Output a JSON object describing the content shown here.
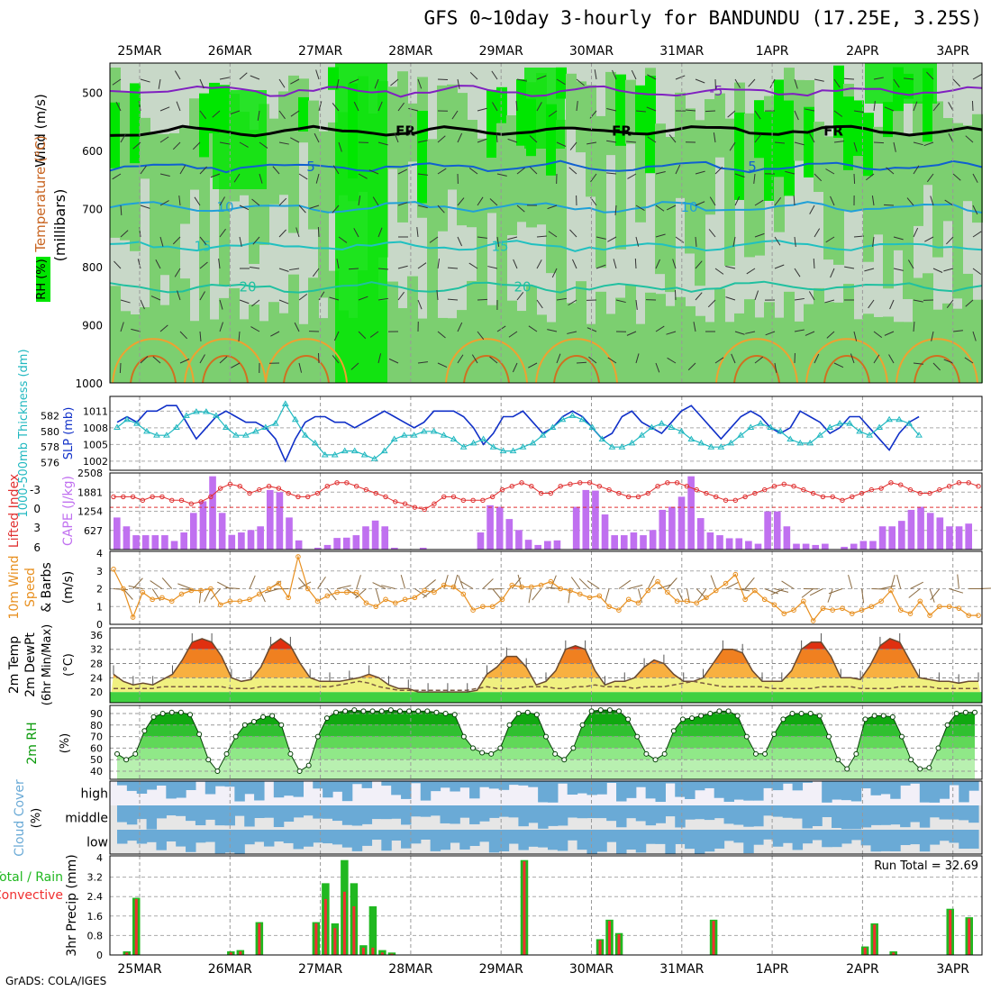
{
  "title": "GFS 0~10day 3-hourly for BANDUNDU (17.25E, 3.25S)",
  "footer": "GrADS: COLA/IGES",
  "colors": {
    "rh_light": "#c8d8c8",
    "rh_mid": "#7ccf70",
    "rh_high": "#00e600",
    "slp": "#1030c8",
    "thickness": "#20b8c0",
    "lifted_index": "#e03030",
    "cape": "#c070f0",
    "wind": "#e89020",
    "rh2m": "#0a9a0a",
    "cloud": "#6aaad6",
    "total_rain": "#20b820",
    "convective_rain": "#f03030"
  },
  "chart_data": [
    {
      "type": "heatmap",
      "name": "cross-section",
      "x_ticks": [
        "25MAR",
        "26MAR",
        "27MAR",
        "28MAR",
        "29MAR",
        "30MAR",
        "31MAR",
        "1APR",
        "2APR",
        "3APR"
      ],
      "ylabel": "(millibars)",
      "yticks": [
        500,
        600,
        700,
        800,
        900,
        1000
      ],
      "ylim": [
        1000,
        450
      ],
      "side_labels": [
        "RH (%)",
        "Temperature (°C)",
        "Wind (m/s)"
      ],
      "isotherms": [
        {
          "label": "-5",
          "level": 498
        },
        {
          "label": "FR",
          "level": 567
        },
        {
          "label": "5",
          "level": 628
        },
        {
          "label": "10",
          "level": 698
        },
        {
          "label": "15",
          "level": 765
        },
        {
          "label": "20",
          "level": 835
        }
      ]
    },
    {
      "type": "line",
      "name": "slp-thickness",
      "left_label": "1000-500mb Thickness (dm)",
      "right_label": "SLP (mb)",
      "left_ticks": [
        576,
        578,
        580,
        582
      ],
      "right_ticks": [
        1002,
        1005,
        1008,
        1011
      ],
      "slp_range": [
        1001,
        1013
      ],
      "series": [
        {
          "name": "SLP (mb)",
          "values": [
            1009,
            1010,
            1009,
            1011,
            1011,
            1012,
            1012,
            1009,
            1006,
            1008,
            1010,
            1011,
            1010,
            1009,
            1009,
            1008,
            1006,
            1002,
            1006,
            1009,
            1010,
            1010,
            1009,
            1009,
            1008,
            1009,
            1010,
            1011,
            1010,
            1009,
            1008,
            1009,
            1011,
            1011,
            1011,
            1010,
            1008,
            1005,
            1007,
            1010,
            1010,
            1011,
            1009,
            1007,
            1008,
            1010,
            1011,
            1010,
            1008,
            1006,
            1007,
            1010,
            1011,
            1009,
            1008,
            1007,
            1009,
            1011,
            1012,
            1010,
            1008,
            1006,
            1008,
            1010,
            1011,
            1010,
            1008,
            1007,
            1008,
            1011,
            1010,
            1009,
            1007,
            1008,
            1010,
            1010,
            1008,
            1006,
            1004,
            1007,
            1009,
            1010
          ]
        },
        {
          "name": "Thickness (dm)",
          "values": [
            580.5,
            581.5,
            581,
            580,
            579.5,
            579.5,
            580.5,
            582,
            582.5,
            582.5,
            582,
            580.5,
            579.5,
            579.5,
            580,
            580.5,
            581,
            583.5,
            581.5,
            579.5,
            578.5,
            577,
            577,
            577.5,
            577.5,
            577,
            576.5,
            577.5,
            579,
            579.5,
            579.5,
            580,
            580,
            579.5,
            579,
            578,
            578.5,
            579,
            578,
            577.5,
            577.5,
            578,
            578.5,
            579.5,
            580.5,
            581.5,
            582,
            581.5,
            580.5,
            579,
            578,
            578,
            578.5,
            579.5,
            580.5,
            581,
            580.5,
            580,
            579,
            578.5,
            578,
            578,
            578.5,
            579.5,
            580.5,
            581,
            580.5,
            580,
            579,
            578.5,
            578.5,
            579.5,
            580.5,
            581,
            581,
            580,
            579.5,
            580.5,
            581.5,
            581.5,
            581,
            579.5
          ]
        }
      ]
    },
    {
      "type": "bar",
      "name": "cape-li",
      "left_label": "Lifted Index",
      "right_label": "CAPE (J/kg)",
      "left_ticks": [
        "-3",
        "0",
        "3",
        "6"
      ],
      "right_ticks": [
        627,
        1254,
        1881,
        2508
      ],
      "cape_range": [
        0,
        2508
      ],
      "series": [
        {
          "name": "CAPE (J/kg)",
          "values": [
            1050,
            760,
            470,
            470,
            470,
            470,
            280,
            560,
            1200,
            1580,
            2400,
            1200,
            480,
            560,
            640,
            760,
            1950,
            1880,
            1050,
            300,
            0,
            60,
            150,
            380,
            390,
            470,
            760,
            950,
            760,
            60,
            0,
            0,
            60,
            0,
            0,
            0,
            0,
            0,
            560,
            1450,
            1400,
            1000,
            640,
            320,
            150,
            280,
            300,
            0,
            1400,
            1950,
            1930,
            1150,
            470,
            470,
            560,
            470,
            640,
            1300,
            1400,
            1730,
            2400,
            1030,
            560,
            470,
            370,
            370,
            280,
            190,
            1250,
            1250,
            760,
            190,
            190,
            150,
            190,
            0,
            90,
            190,
            280,
            280,
            760,
            760,
            940,
            1300,
            1400,
            1200,
            1050,
            760,
            760,
            850
          ]
        },
        {
          "name": "Lifted Index",
          "values": [
            -1.5,
            -1.5,
            -1.5,
            -1,
            -1.5,
            -1.5,
            -1,
            -1,
            -0.5,
            -0.8,
            -1.5,
            -2.7,
            -3.3,
            -3.0,
            -2.0,
            -2.5,
            -3.0,
            -2.7,
            -2.0,
            -1.5,
            -1.5,
            -2.0,
            -3.0,
            -3.5,
            -3.5,
            -3.0,
            -2.5,
            -2.0,
            -1.5,
            -0.8,
            -0.5,
            0,
            0.3,
            -0.5,
            -1.5,
            -1.5,
            -1.0,
            -1.0,
            -1.0,
            -1.5,
            -2.5,
            -3.0,
            -3.5,
            -3.0,
            -2.0,
            -2.0,
            -3.0,
            -3.3,
            -3.5,
            -3.5,
            -3.0,
            -2.5,
            -2.0,
            -1.5,
            -1.5,
            -2.0,
            -3.0,
            -3.5,
            -3.5,
            -3.0,
            -2.5,
            -2.0,
            -1.5,
            -1.0,
            -1.0,
            -1.5,
            -2.0,
            -2.5,
            -3.0,
            -3.3,
            -3.0,
            -2.5,
            -2.0,
            -1.5,
            -1.5,
            -1.0,
            -1.5,
            -2.0,
            -2.5,
            -2.7,
            -3.5,
            -3.2,
            -2.5,
            -2.0,
            -2.0,
            -2.5,
            -3.0,
            -3.5,
            -3.5,
            -3.0
          ]
        }
      ]
    },
    {
      "type": "line",
      "name": "wind10m",
      "ylabel": "10m Wind Speed (m/s) & Barbs",
      "yticks": [
        0,
        1,
        2,
        3,
        4
      ],
      "ylim": [
        0,
        4
      ],
      "series": [
        {
          "name": "Speed (m/s)",
          "values": [
            3.1,
            2.0,
            0.4,
            1.8,
            1.4,
            1.5,
            1.3,
            1.7,
            1.9,
            1.9,
            2.0,
            1.1,
            1.3,
            1.3,
            1.4,
            1.7,
            2.0,
            2.3,
            1.5,
            3.8,
            2.0,
            1.3,
            1.6,
            1.8,
            1.8,
            1.8,
            1.2,
            1.0,
            1.4,
            1.2,
            1.4,
            1.5,
            1.9,
            1.8,
            2.2,
            2.1,
            1.7,
            0.8,
            1.0,
            1.0,
            1.4,
            2.2,
            2.1,
            2.1,
            2.2,
            2.4,
            2.0,
            1.9,
            1.7,
            1.5,
            1.6,
            1.0,
            0.8,
            1.4,
            1.2,
            1.9,
            2.4,
            1.8,
            1.3,
            1.3,
            1.2,
            1.5,
            1.9,
            2.3,
            2.8,
            1.4,
            1.9,
            1.4,
            1.1,
            0.6,
            0.8,
            1.3,
            0.2,
            0.9,
            0.8,
            0.9,
            0.6,
            0.8,
            1.0,
            1.3,
            1.9,
            0.8,
            0.6,
            1.3,
            0.5,
            1.0,
            1.0,
            0.9,
            0.5,
            0.5
          ]
        }
      ]
    },
    {
      "type": "area",
      "name": "temperature",
      "ylabel": "2m Temp 2m DewPt (6hr Min/Max) (°C)",
      "yticks": [
        20,
        24,
        28,
        32,
        36
      ],
      "ylim": [
        17,
        38
      ],
      "series": [
        {
          "name": "2m Temp",
          "values": [
            25,
            23,
            22,
            22.5,
            22,
            23.5,
            25,
            29,
            34,
            35,
            34,
            30,
            24,
            23,
            23.5,
            27,
            33,
            35,
            33,
            28,
            24,
            23,
            23,
            23,
            23.5,
            24,
            25,
            24,
            22,
            21,
            21,
            20,
            20,
            20,
            20,
            20,
            20,
            20.5,
            25,
            27,
            30,
            30,
            27,
            22,
            23,
            26,
            32,
            33,
            32,
            26,
            22,
            23,
            23,
            24,
            27,
            29,
            28,
            25,
            23,
            23,
            24,
            28,
            32,
            32,
            31,
            26,
            23,
            23,
            23,
            26,
            32,
            34,
            34,
            30,
            24,
            24,
            23.5,
            27.5,
            33,
            35,
            34,
            29,
            24,
            23.5,
            23,
            23,
            22.5,
            23,
            23
          ]
        },
        {
          "name": "2m DewPt",
          "values": [
            21,
            21,
            21,
            21,
            21,
            21.5,
            21.5,
            21.5,
            21.5,
            21.5,
            21.5,
            21.5,
            21,
            21,
            21,
            21.5,
            21.5,
            21.5,
            21.5,
            21.5,
            21.5,
            21.5,
            21.5,
            22,
            22.5,
            23,
            22.5,
            21.5,
            21,
            20.5,
            20.5,
            20.5,
            20.5,
            20.5,
            20.5,
            20.5,
            20.5,
            21,
            21.5,
            21,
            21,
            21,
            21.5,
            21.5,
            21.5,
            21,
            21,
            21.5,
            21.5,
            22,
            21.5,
            21.5,
            21.5,
            21,
            21.5,
            21.5,
            21.5,
            22,
            22.5,
            23,
            22.5,
            22,
            21.5,
            21.5,
            21.5,
            21.5,
            21.5,
            21,
            21,
            21,
            21,
            21,
            21.5,
            21.5,
            21.5,
            21.5,
            21,
            21,
            21,
            21,
            21.5,
            21.5,
            21.5,
            21.5,
            21,
            21,
            21,
            21,
            21
          ]
        }
      ]
    },
    {
      "type": "area",
      "name": "rh2m",
      "ylabel": "2m RH (%)",
      "yticks": [
        40,
        50,
        60,
        70,
        80,
        90
      ],
      "ylim": [
        33,
        97
      ],
      "series": [
        {
          "name": "2m RH",
          "values": [
            55,
            50,
            55,
            75,
            87,
            90,
            91,
            91,
            89,
            72,
            50,
            40,
            55,
            70,
            80,
            83,
            87,
            88,
            80,
            55,
            40,
            45,
            70,
            86,
            91,
            92,
            93,
            92,
            92,
            92,
            93,
            92,
            92,
            92,
            92,
            91,
            90,
            89,
            70,
            60,
            56,
            55,
            60,
            80,
            90,
            91,
            89,
            70,
            55,
            50,
            60,
            80,
            92,
            93,
            93,
            92,
            85,
            70,
            55,
            50,
            55,
            75,
            85,
            86,
            88,
            90,
            92,
            92,
            88,
            70,
            55,
            55,
            72,
            85,
            90,
            90,
            90,
            88,
            70,
            50,
            42,
            55,
            85,
            88,
            88,
            87,
            70,
            50,
            42,
            43,
            60,
            80,
            90,
            91,
            91
          ]
        }
      ]
    },
    {
      "type": "heatmap",
      "name": "cloud-cover",
      "ylabel": "Cloud Cover (%)",
      "rows": [
        "high",
        "middle",
        "low"
      ]
    },
    {
      "type": "bar",
      "name": "precip",
      "ylabel": "3hr Precip (mm)",
      "side_labels": [
        "Total / Rain",
        "Convective"
      ],
      "yticks": [
        "0",
        "0.8",
        "1.6",
        "2.4",
        "3.2",
        "4"
      ],
      "ylim": [
        0,
        4
      ],
      "annotation": "Run Total = 32.69",
      "series": [
        {
          "name": "Total",
          "values": [
            0,
            0.15,
            2.35,
            0,
            0,
            0,
            0,
            0,
            0,
            0,
            0,
            0,
            0.15,
            0.2,
            0,
            1.35,
            0,
            0,
            0,
            0,
            0,
            1.35,
            2.95,
            1.3,
            3.9,
            2.95,
            0.4,
            2.0,
            0.2,
            0.1,
            0,
            0,
            0,
            0,
            0,
            0,
            0,
            0,
            0,
            0,
            0,
            0,
            0,
            3.9,
            0,
            0,
            0,
            0,
            0,
            0,
            0,
            0.65,
            1.45,
            0.9,
            0,
            0,
            0,
            0,
            0,
            0,
            0,
            0,
            0,
            1.45,
            0,
            0,
            0,
            0,
            0,
            0,
            0,
            0,
            0,
            0,
            0,
            0,
            0,
            0,
            0,
            0.35,
            1.3,
            0,
            0.15,
            0,
            0,
            0,
            0,
            0,
            1.9,
            0,
            1.55
          ]
        },
        {
          "name": "Convective",
          "values": [
            0,
            0.1,
            2.3,
            0,
            0,
            0,
            0,
            0,
            0,
            0,
            0,
            0,
            0.1,
            0.15,
            0,
            1.3,
            0,
            0,
            0,
            0,
            0,
            1.3,
            2.3,
            1.1,
            2.6,
            2.0,
            0.3,
            0.3,
            0.1,
            0.05,
            0,
            0,
            0,
            0,
            0,
            0,
            0,
            0,
            0,
            0,
            0,
            0,
            0,
            3.85,
            0,
            0,
            0,
            0,
            0,
            0,
            0,
            0.6,
            1.4,
            0.85,
            0,
            0,
            0,
            0,
            0,
            0,
            0,
            0,
            0,
            1.4,
            0,
            0,
            0,
            0,
            0,
            0,
            0,
            0,
            0,
            0,
            0,
            0,
            0,
            0,
            0,
            0.3,
            1.25,
            0,
            0.1,
            0,
            0,
            0,
            0,
            0,
            1.85,
            0,
            1.5
          ]
        }
      ]
    }
  ]
}
